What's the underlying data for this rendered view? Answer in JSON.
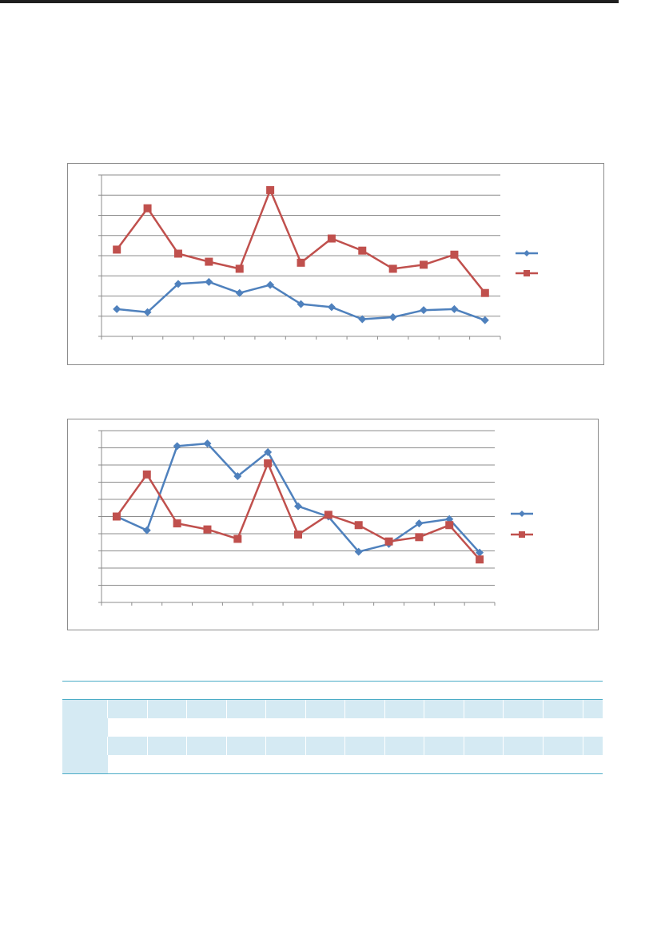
{
  "colors": {
    "series_blue": "#4f81bd",
    "series_red": "#c0504d",
    "gridline": "#8c8c8c",
    "table_band": "#d5eaf3",
    "table_rule": "#4bacc6"
  },
  "chart_data": [
    {
      "type": "line",
      "title": "",
      "xlabel": "",
      "ylabel": "",
      "categories": [
        "",
        "",
        "",
        "",
        "",
        "",
        "",
        "",
        "",
        "",
        "",
        "",
        ""
      ],
      "ylim": [
        0,
        8
      ],
      "grid": true,
      "legend": "right",
      "series": [
        {
          "marker": "diamond",
          "color": "#4f81bd",
          "values": [
            1.35,
            1.2,
            2.6,
            2.7,
            2.15,
            2.55,
            1.6,
            1.45,
            0.85,
            0.95,
            1.3,
            1.35,
            0.8
          ]
        },
        {
          "marker": "square",
          "color": "#c0504d",
          "values": [
            4.3,
            6.35,
            4.1,
            3.7,
            3.35,
            7.25,
            3.65,
            4.85,
            4.25,
            3.35,
            3.55,
            4.05,
            2.15
          ]
        }
      ]
    },
    {
      "type": "line",
      "title": "",
      "xlabel": "",
      "ylabel": "",
      "categories": [
        "",
        "",
        "",
        "",
        "",
        "",
        "",
        "",
        "",
        "",
        "",
        "",
        ""
      ],
      "ylim": [
        0,
        10
      ],
      "grid": true,
      "legend": "right",
      "series": [
        {
          "marker": "diamond",
          "color": "#4f81bd",
          "values": [
            5.0,
            4.2,
            9.1,
            9.25,
            7.35,
            8.75,
            5.6,
            5.0,
            2.95,
            3.4,
            4.6,
            4.85,
            2.9
          ]
        },
        {
          "marker": "square",
          "color": "#c0504d",
          "values": [
            5.0,
            7.45,
            4.6,
            4.25,
            3.7,
            8.1,
            3.95,
            5.1,
            4.5,
            3.55,
            3.8,
            4.5,
            2.5
          ]
        }
      ]
    }
  ],
  "table": {
    "columns": 13,
    "rows": 4
  }
}
